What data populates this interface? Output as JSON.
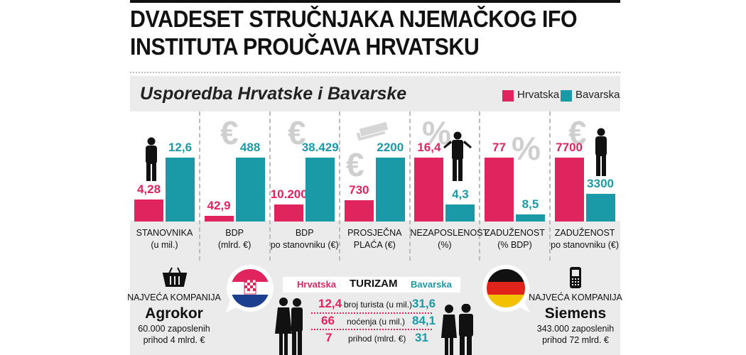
{
  "headline": [
    "DVADESET STRUČNJAKA NJEMAČKOG IFO",
    "INSTITUTA PROUČAVA HRVATSKU"
  ],
  "subtitle": "Usporedba Hrvatske i Bavarske",
  "colors": {
    "hrvatska": "#e0245e",
    "bavarska": "#1a9aa6"
  },
  "legend": [
    "Hrvatska",
    "Bavarska"
  ],
  "chart_data": {
    "type": "bar",
    "title": "Usporedba Hrvatske i Bavarske",
    "series": [
      {
        "name": "Hrvatska",
        "values": [
          "4,28",
          "42,9",
          "10.200",
          "730",
          "16,4",
          "77",
          "7700"
        ]
      },
      {
        "name": "Bavarska",
        "values": [
          "12,6",
          "488",
          "38.429",
          "2200",
          "4,3",
          "8,5",
          "3300"
        ]
      }
    ],
    "categories": [
      [
        "STANOVNIKA",
        "(u mil.)"
      ],
      [
        "BDP",
        "(mlrd. €)"
      ],
      [
        "BDP",
        "po stanovniku (€)"
      ],
      [
        "PROSJEČNA",
        "PLAĆA (€)"
      ],
      [
        "NEZAPOSLENOST",
        "(%)"
      ],
      [
        "ZADUŽENOST",
        "(% BDP)"
      ],
      [
        "ZADUŽENOST",
        "po stanovniku (€)"
      ]
    ]
  },
  "left_company": {
    "label": "NAJVEĆA KOMPANIJA",
    "name": "Agrokor",
    "line1": "60.000 zaposlenih",
    "line2": "prihod 4 mlrd. €"
  },
  "right_company": {
    "label": "NAJVEĆA KOMPANIJA",
    "name": "Siemens",
    "line1": "343.000 zaposlenih",
    "line2": "prihod 72 mlrd. €"
  },
  "tourism": {
    "title": "TURIZAM",
    "left": "Hrvatska",
    "right": "Bavarska",
    "rows": [
      {
        "hr": "12,4",
        "label": "broj turista (u mil.)",
        "bv": "31,6"
      },
      {
        "hr": "66",
        "label": "noćenja (u mil.)",
        "bv": "84,1"
      },
      {
        "hr": "7",
        "label": "prihod (mlrd. €)",
        "bv": "31"
      }
    ]
  },
  "icons": [
    "basket-icon",
    "croatia-flag-icon",
    "germany-flag-icon",
    "mobile-phone-icon",
    "person-icon",
    "euro-icon",
    "percent-icon",
    "money-icon"
  ]
}
